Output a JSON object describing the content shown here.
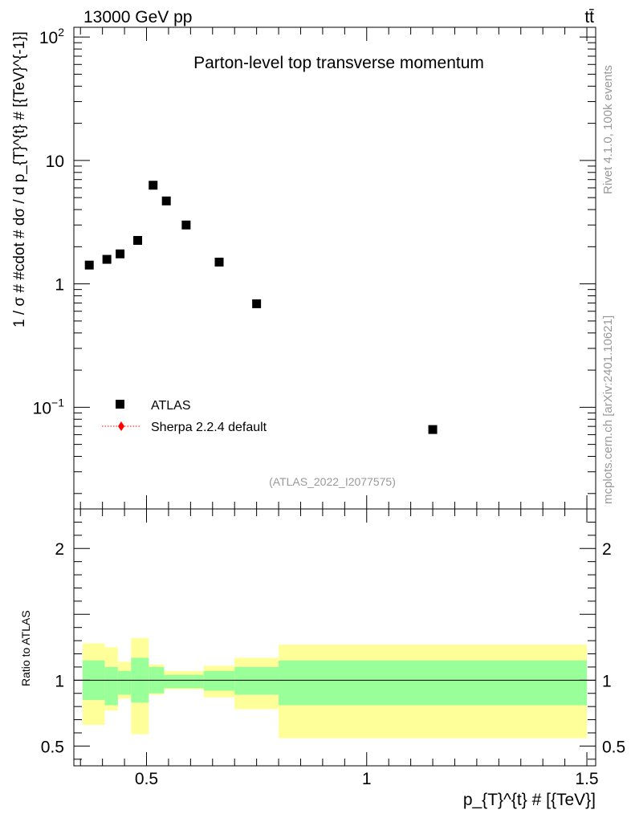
{
  "header": {
    "energy": "13000 GeV pp",
    "process": "tt̄"
  },
  "side": {
    "rivet": "Rivet 4.1.0,  100k events",
    "source": "mcplots.cern.ch [arXiv:2401.10621]"
  },
  "colors": {
    "data": "#000000",
    "mc": "#ff0000",
    "band_inner": "#99ff99",
    "band_outer": "#ffff99",
    "analysis_text": "#999999"
  },
  "chart_data": [
    {
      "type": "scatter",
      "panel": "main",
      "title": "Parton-level top transverse momentum",
      "ylabel": "1 / σ # #cdot # dσ / d p_{T}^{t} # [{TeV}^{-1}]",
      "yscale": "log",
      "ylim": [
        0.015,
        120
      ],
      "xlim": [
        0.335,
        1.52
      ],
      "analysis_label": "(ATLAS_2022_I2077575)",
      "legend": [
        {
          "name": "ATLAS",
          "marker": "square"
        },
        {
          "name": "Sherpa 2.2.4 default",
          "marker": "diamond-dotted"
        }
      ],
      "y_ticks": [
        {
          "value": 100,
          "label": "10^2",
          "base": "10",
          "exp": "2"
        },
        {
          "value": 10,
          "label": "10"
        },
        {
          "value": 1,
          "label": "1"
        },
        {
          "value": 0.1,
          "label": "10^-1",
          "base": "10",
          "exp": "−1"
        }
      ],
      "series": [
        {
          "name": "ATLAS",
          "points": [
            {
              "x": 0.37,
              "y": 1.42
            },
            {
              "x": 0.41,
              "y": 1.58
            },
            {
              "x": 0.44,
              "y": 1.75
            },
            {
              "x": 0.48,
              "y": 2.25
            },
            {
              "x": 0.515,
              "y": 6.3
            },
            {
              "x": 0.545,
              "y": 4.7
            },
            {
              "x": 0.59,
              "y": 3.0
            },
            {
              "x": 0.665,
              "y": 1.5
            },
            {
              "x": 0.75,
              "y": 0.69
            },
            {
              "x": 1.15,
              "y": 0.066
            }
          ]
        }
      ]
    },
    {
      "type": "band",
      "panel": "ratio",
      "ylabel": "Ratio to ATLAS",
      "xlabel": "p_{T}^{t} # [{TeV}]",
      "ylim": [
        0.35,
        2.3
      ],
      "xlim": [
        0.335,
        1.52
      ],
      "reference_line": 1,
      "y_ticks": [
        {
          "value": 0.5,
          "label": "0.5"
        },
        {
          "value": 1,
          "label": "1"
        },
        {
          "value": 2,
          "label": "2"
        }
      ],
      "x_ticks": [
        {
          "value": 0.5,
          "label": "0.5"
        },
        {
          "value": 1,
          "label": "1"
        },
        {
          "value": 1.5,
          "label": "1.5"
        }
      ],
      "bins": [
        {
          "x0": 0.355,
          "x1": 0.405,
          "inner": [
            0.85,
            1.15
          ],
          "outer": [
            0.66,
            1.28
          ]
        },
        {
          "x0": 0.405,
          "x1": 0.435,
          "inner": [
            0.81,
            1.1
          ],
          "outer": [
            0.77,
            1.25
          ]
        },
        {
          "x0": 0.435,
          "x1": 0.465,
          "inner": [
            0.89,
            1.07
          ],
          "outer": [
            0.86,
            1.14
          ]
        },
        {
          "x0": 0.465,
          "x1": 0.505,
          "inner": [
            0.83,
            1.17
          ],
          "outer": [
            0.59,
            1.32
          ]
        },
        {
          "x0": 0.505,
          "x1": 0.54,
          "inner": [
            0.9,
            1.1
          ],
          "outer": [
            0.89,
            1.12
          ]
        },
        {
          "x0": 0.54,
          "x1": 0.63,
          "inner": [
            0.94,
            1.04
          ],
          "outer": [
            0.93,
            1.07
          ]
        },
        {
          "x0": 0.63,
          "x1": 0.7,
          "inner": [
            0.92,
            1.07
          ],
          "outer": [
            0.87,
            1.11
          ]
        },
        {
          "x0": 0.7,
          "x1": 0.8,
          "inner": [
            0.89,
            1.1
          ],
          "outer": [
            0.78,
            1.17
          ]
        },
        {
          "x0": 0.8,
          "x1": 1.5,
          "inner": [
            0.81,
            1.15
          ],
          "outer": [
            0.56,
            1.27
          ]
        }
      ]
    }
  ]
}
